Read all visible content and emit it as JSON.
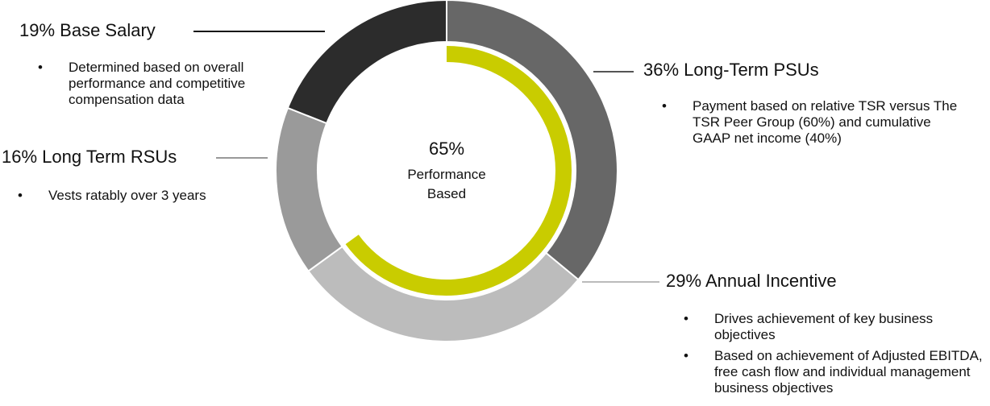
{
  "chart_data": {
    "type": "donut",
    "outer_ring": [
      {
        "label": "Long-Term PSUs",
        "percent": 36,
        "pct_text": "36%",
        "color": "#676767",
        "bullets": [
          "Payment based on relative TSR versus The TSR Peer Group (60%) and cumulative GAAP net income (40%)"
        ]
      },
      {
        "label": "Annual Incentive",
        "percent": 29,
        "pct_text": "29%",
        "color": "#bcbcbc",
        "bullets": [
          "Drives achievement of key business objectives",
          "Based on achievement of Adjusted EBITDA, free cash flow and individual management business objectives"
        ]
      },
      {
        "label": "Long Term RSUs",
        "percent": 16,
        "pct_text": "16%",
        "color": "#9a9a9a",
        "bullets": [
          "Vests ratably over 3 years"
        ]
      },
      {
        "label": "Base Salary",
        "percent": 19,
        "pct_text": "19%",
        "color": "#2c2c2c",
        "bullets": [
          "Determined based on overall performance and competitive compensation data"
        ]
      }
    ],
    "inner_arc": {
      "percent": 65,
      "color": "#c9cc00"
    },
    "center": {
      "value": "65%",
      "line1": "Performance",
      "line2": "Based"
    }
  }
}
